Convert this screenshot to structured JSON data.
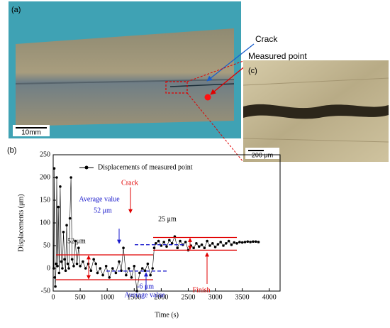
{
  "panel_a": {
    "label": "(a)",
    "crack": "Crack",
    "measured_point": "Measured point",
    "scale_bar": "10mm"
  },
  "panel_c": {
    "label": "(c)",
    "scale_bar": "200 μm"
  },
  "chart_data": {
    "type": "line",
    "panel_label": "(b)",
    "xlabel": "Time (s)",
    "ylabel": "Displacements (μm)",
    "x": [
      10,
      20,
      30,
      40,
      55,
      65,
      80,
      95,
      110,
      130,
      150,
      170,
      190,
      210,
      230,
      250,
      270,
      290,
      310,
      330,
      350,
      380,
      410,
      440,
      470,
      500,
      550,
      600,
      650,
      700,
      750,
      790,
      820,
      870,
      920,
      980,
      1040,
      1100,
      1160,
      1220,
      1260,
      1300,
      1350,
      1400,
      1450,
      1500,
      1550,
      1600,
      1650,
      1700,
      1750,
      1800,
      1840,
      1870,
      1900,
      1950,
      2000,
      2050,
      2100,
      2150,
      2200,
      2250,
      2300,
      2350,
      2400,
      2450,
      2500,
      2550,
      2600,
      2650,
      2700,
      2750,
      2800,
      2850,
      2900,
      2950,
      3000,
      3050,
      3100,
      3150,
      3200,
      3250,
      3300,
      3350,
      3400,
      3450,
      3500,
      3550,
      3600,
      3650,
      3700,
      3750,
      3800
    ],
    "series": [
      {
        "name": "Displacements of measured point",
        "color": "#000000",
        "values": [
          0,
          220,
          -20,
          -40,
          10,
          200,
          5,
          135,
          -10,
          180,
          15,
          0,
          80,
          20,
          -5,
          95,
          10,
          0,
          110,
          200,
          20,
          5,
          60,
          10,
          45,
          5,
          15,
          0,
          10,
          -5,
          20,
          10,
          -10,
          0,
          -15,
          5,
          -20,
          0,
          -10,
          15,
          -5,
          45,
          -15,
          0,
          -20,
          5,
          -50,
          -10,
          0,
          -5,
          10,
          -15,
          0,
          45,
          55,
          60,
          50,
          58,
          48,
          62,
          55,
          70,
          45,
          60,
          52,
          58,
          40,
          50,
          45,
          55,
          48,
          52,
          45,
          60,
          50,
          55,
          47,
          53,
          58,
          50,
          55,
          60,
          52,
          57,
          55,
          58,
          57,
          58,
          59,
          58,
          59,
          59,
          58
        ]
      }
    ],
    "xlim": [
      0,
      4200
    ],
    "ylim": [
      -50,
      250
    ],
    "xticks": [
      0,
      500,
      1000,
      1500,
      2000,
      2500,
      3000,
      3500,
      4000
    ],
    "yticks": [
      -50,
      0,
      50,
      100,
      150,
      200,
      250
    ],
    "annotations": [
      {
        "text": "Crack",
        "color": "#e00000"
      },
      {
        "text": "Average value",
        "color": "#1a1acc"
      },
      {
        "text": "52 μm",
        "color": "#1a1acc"
      },
      {
        "text": "52 μm",
        "color": "#000000"
      },
      {
        "text": "25 μm",
        "color": "#000000"
      },
      {
        "text": "Finish",
        "color": "#e00000"
      },
      {
        "text": "-6 μm",
        "color": "#1a1acc"
      },
      {
        "text": "Average value",
        "color": "#1a1acc"
      }
    ]
  }
}
